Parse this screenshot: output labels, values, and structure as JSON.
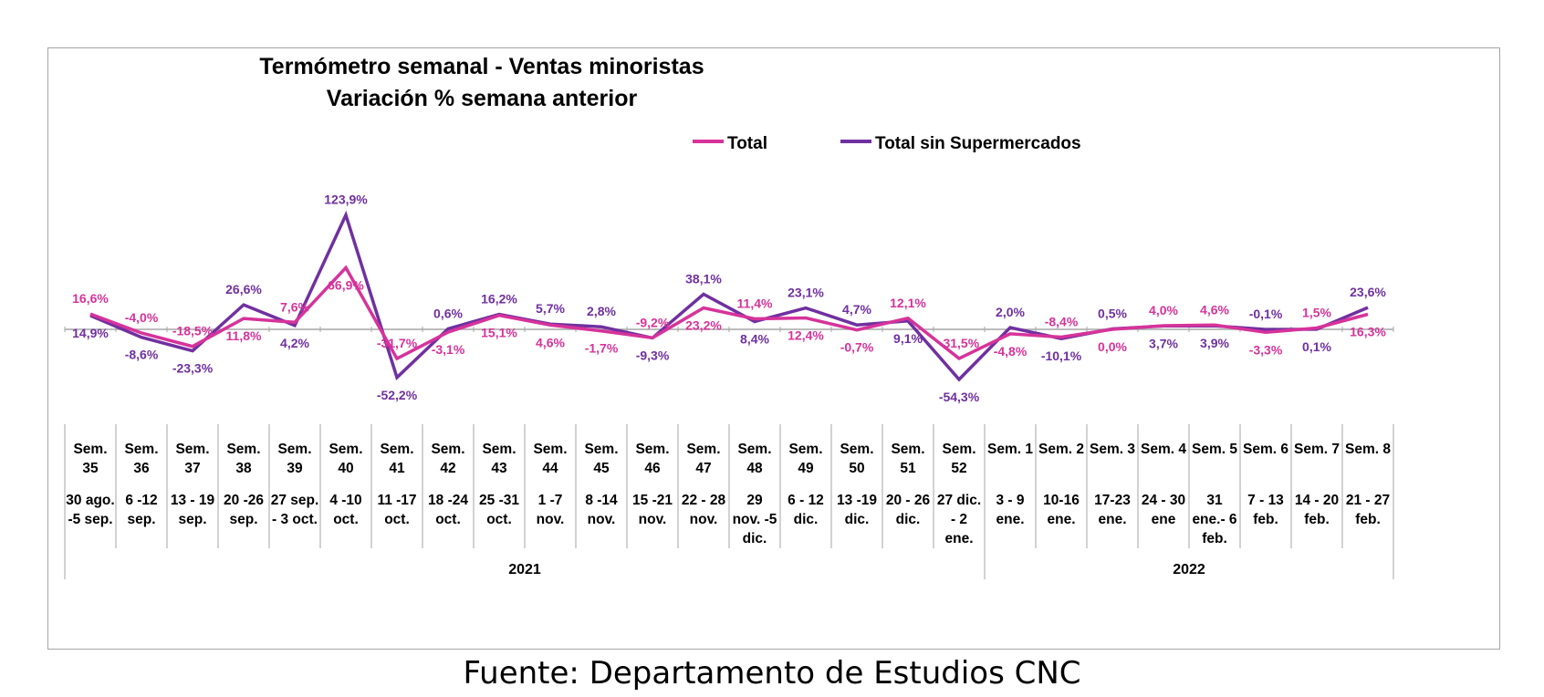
{
  "source_note": "Fuente: Departamento de Estudios CNC",
  "chart_data": {
    "type": "line",
    "title": [
      "Termómetro semanal - Ventas minoristas",
      "Variación % semana anterior"
    ],
    "legend_position": "top-right",
    "grid": false,
    "ylim": [
      -70,
      135
    ],
    "colors": {
      "Total": "#d6339a",
      "Total sin Supermercados": "#7030a0",
      "axis": "#a6a6a6"
    },
    "categories": [
      {
        "week": [
          "Sem.",
          "35"
        ],
        "dates": [
          "30 ago.",
          "-5 sep."
        ]
      },
      {
        "week": [
          "Sem.",
          "36"
        ],
        "dates": [
          "6 -12",
          "sep."
        ]
      },
      {
        "week": [
          "Sem.",
          "37"
        ],
        "dates": [
          "13 - 19",
          "sep."
        ]
      },
      {
        "week": [
          "Sem.",
          "38"
        ],
        "dates": [
          "20 -26",
          "sep."
        ]
      },
      {
        "week": [
          "Sem.",
          "39"
        ],
        "dates": [
          "27 sep.",
          "- 3 oct."
        ]
      },
      {
        "week": [
          "Sem.",
          "40"
        ],
        "dates": [
          "4 -10",
          "oct."
        ]
      },
      {
        "week": [
          "Sem.",
          "41"
        ],
        "dates": [
          "11 -17",
          "oct."
        ]
      },
      {
        "week": [
          "Sem.",
          "42"
        ],
        "dates": [
          "18 -24",
          "oct."
        ]
      },
      {
        "week": [
          "Sem.",
          "43"
        ],
        "dates": [
          "25 -31",
          "oct."
        ]
      },
      {
        "week": [
          "Sem.",
          "44"
        ],
        "dates": [
          "1 -7",
          "nov."
        ]
      },
      {
        "week": [
          "Sem.",
          "45"
        ],
        "dates": [
          "8 -14",
          "nov."
        ]
      },
      {
        "week": [
          "Sem.",
          "46"
        ],
        "dates": [
          "15 -21",
          "nov."
        ]
      },
      {
        "week": [
          "Sem.",
          "47"
        ],
        "dates": [
          "22 - 28",
          "nov."
        ]
      },
      {
        "week": [
          "Sem.",
          "48"
        ],
        "dates": [
          "29",
          "nov. -5",
          "dic."
        ]
      },
      {
        "week": [
          "Sem.",
          "49"
        ],
        "dates": [
          "6 - 12",
          "dic."
        ]
      },
      {
        "week": [
          "Sem.",
          "50"
        ],
        "dates": [
          "13 -19",
          "dic."
        ]
      },
      {
        "week": [
          "Sem.",
          "51"
        ],
        "dates": [
          "20 - 26",
          "dic."
        ]
      },
      {
        "week": [
          "Sem.",
          "52"
        ],
        "dates": [
          "27 dic.",
          "- 2",
          "ene."
        ]
      },
      {
        "week": [
          "Sem. 1"
        ],
        "dates": [
          "3 - 9",
          "ene."
        ]
      },
      {
        "week": [
          "Sem. 2"
        ],
        "dates": [
          "10-16",
          "ene."
        ]
      },
      {
        "week": [
          "Sem. 3"
        ],
        "dates": [
          "17-23",
          "ene."
        ]
      },
      {
        "week": [
          "Sem. 4"
        ],
        "dates": [
          "24 - 30",
          "ene"
        ]
      },
      {
        "week": [
          "Sem. 5"
        ],
        "dates": [
          "31",
          "ene.- 6",
          "feb."
        ]
      },
      {
        "week": [
          "Sem. 6"
        ],
        "dates": [
          "7 - 13",
          "feb."
        ]
      },
      {
        "week": [
          "Sem. 7"
        ],
        "dates": [
          "14 - 20",
          "feb."
        ]
      },
      {
        "week": [
          "Sem. 8"
        ],
        "dates": [
          "21 - 27",
          "feb."
        ]
      }
    ],
    "year_groups": [
      {
        "label": "2021",
        "start": 0,
        "end": 17
      },
      {
        "label": "2022",
        "start": 18,
        "end": 25
      }
    ],
    "series": [
      {
        "name": "Total",
        "values": [
          16.6,
          -4.0,
          -18.5,
          11.8,
          7.6,
          66.9,
          -31.7,
          -3.1,
          15.1,
          4.6,
          -1.7,
          -9.2,
          23.2,
          11.4,
          12.4,
          -0.7,
          12.1,
          -31.5,
          -4.8,
          -8.4,
          0.0,
          4.0,
          4.6,
          -3.3,
          1.5,
          16.3
        ],
        "labels": [
          "16,6%",
          "-4,0%",
          "-18,5%",
          "11,8%",
          "7,6%",
          "66,9%",
          "-31,7%",
          "-3,1%",
          "15,1%",
          "4,6%",
          "-1,7%",
          "-9,2%",
          "23,2%",
          "11,4%",
          "12,4%",
          "-0,7%",
          "12,1%",
          "-31,5%",
          "-4,8%",
          "-8,4%",
          "0,0%",
          "4,0%",
          "4,6%",
          "-3,3%",
          "1,5%",
          "16,3%"
        ]
      },
      {
        "name": "Total sin Supermercados",
        "values": [
          14.9,
          -8.6,
          -23.3,
          26.6,
          4.2,
          123.9,
          -52.2,
          0.6,
          16.2,
          5.7,
          2.8,
          -9.3,
          38.1,
          8.4,
          23.1,
          4.7,
          9.1,
          -54.3,
          2.0,
          -10.1,
          0.5,
          3.7,
          3.9,
          -0.1,
          0.1,
          23.6
        ],
        "labels": [
          "14,9%",
          "-8,6%",
          "-23,3%",
          "26,6%",
          "4,2%",
          "123,9%",
          "-52,2%",
          "0,6%",
          "16,2%",
          "5,7%",
          "2,8%",
          "-9,3%",
          "38,1%",
          "8,4%",
          "23,1%",
          "4,7%",
          "9,1%",
          "-54,3%",
          "2,0%",
          "-10,1%",
          "0,5%",
          "3,7%",
          "3,9%",
          "-0,1%",
          "0,1%",
          "23,6%"
        ]
      }
    ]
  }
}
